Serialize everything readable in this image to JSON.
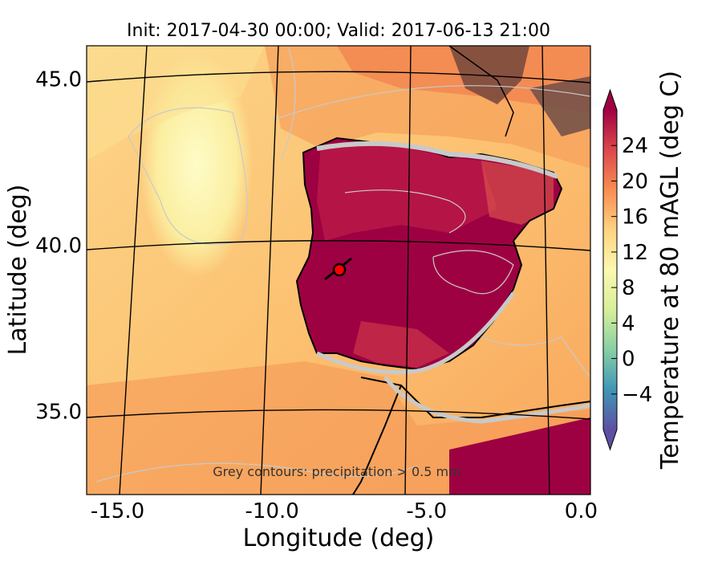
{
  "title": "Init: 2017-04-30 00:00; Valid: 2017-06-13 21:00",
  "annotation": "Grey contours: precipitation > 0.5 mm",
  "map": {
    "region": "Iberian Peninsula",
    "xlabel": "Longitude (deg)",
    "ylabel": "Latitude (deg)",
    "xticks": [
      {
        "value": -15.0,
        "label": "-15.0"
      },
      {
        "value": -10.0,
        "label": "-10.0"
      },
      {
        "value": -5.0,
        "label": "-5.0"
      },
      {
        "value": 0.0,
        "label": "0.0"
      }
    ],
    "yticks": [
      {
        "value": 35.0,
        "label": "35.0"
      },
      {
        "value": 40.0,
        "label": "40.0"
      },
      {
        "value": 45.0,
        "label": "45.0"
      }
    ],
    "xlim": [
      -16,
      0.3
    ],
    "ylim": [
      32.5,
      46
    ],
    "marker": {
      "lon": -7.6,
      "lat": 39.4,
      "color": "#ff0000"
    }
  },
  "colorbar": {
    "label": "Temperature at 80 mAGL (deg C)",
    "vmin": -8,
    "vmax": 28,
    "ticks": [
      {
        "value": -4,
        "label": "−4"
      },
      {
        "value": 0,
        "label": "0"
      },
      {
        "value": 4,
        "label": "4"
      },
      {
        "value": 8,
        "label": "8"
      },
      {
        "value": 12,
        "label": "12"
      },
      {
        "value": 16,
        "label": "16"
      },
      {
        "value": 20,
        "label": "20"
      },
      {
        "value": 24,
        "label": "24"
      }
    ],
    "colors": [
      "#5e4fa2",
      "#3f96b7",
      "#88cfa4",
      "#d7ef9b",
      "#fbf8b0",
      "#fdd380",
      "#f88d52",
      "#dc484c",
      "#9e0142"
    ]
  }
}
